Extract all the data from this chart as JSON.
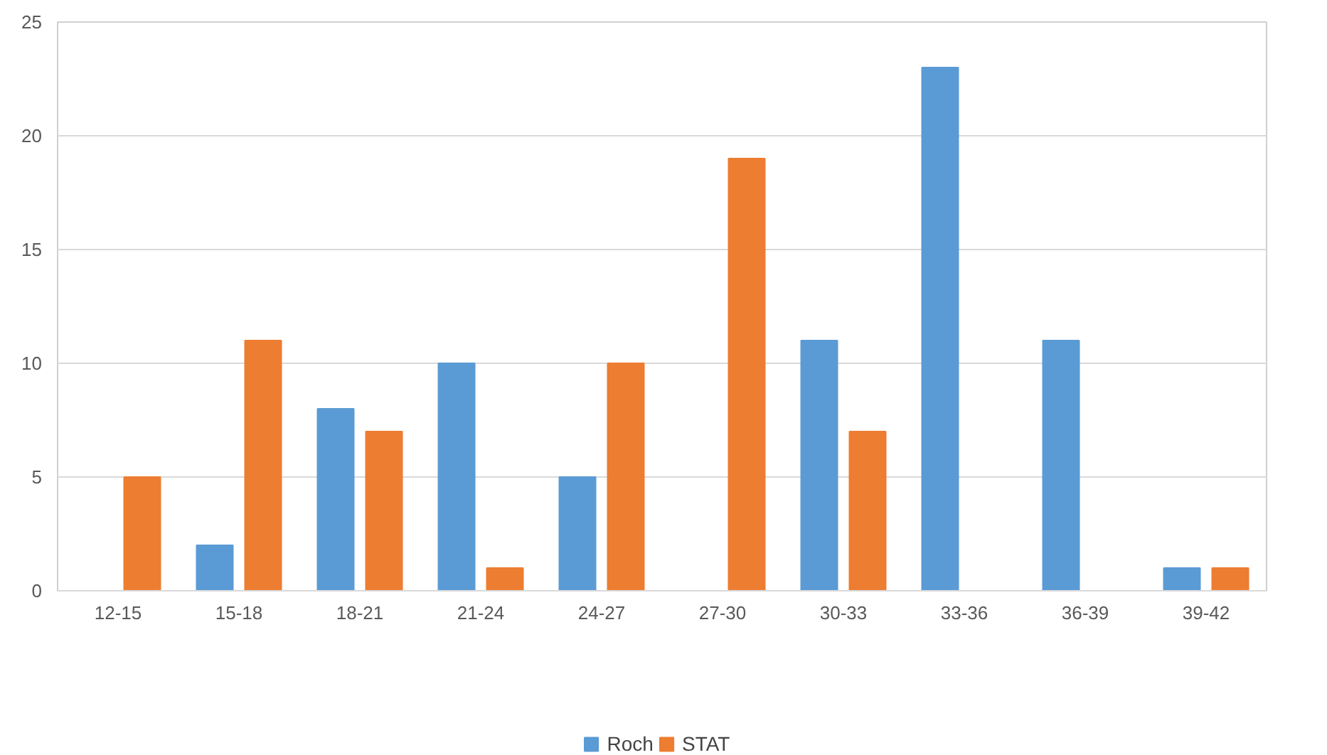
{
  "chart_data": {
    "type": "bar",
    "categories": [
      "12-15",
      "15-18",
      "18-21",
      "21-24",
      "24-27",
      "27-30",
      "30-33",
      "33-36",
      "36-39",
      "39-42"
    ],
    "series": [
      {
        "name": "Roch",
        "color": "#5b9bd5",
        "values": [
          0,
          2,
          8,
          10,
          5,
          0,
          11,
          23,
          11,
          1
        ]
      },
      {
        "name": "STAT",
        "color": "#ed7d31",
        "values": [
          5,
          11,
          7,
          1,
          10,
          19,
          7,
          0,
          0,
          1
        ]
      }
    ],
    "ylim": [
      0,
      25
    ],
    "yticks": [
      0,
      5,
      10,
      15,
      20,
      25
    ],
    "grid": "y",
    "legend": "bottom"
  }
}
